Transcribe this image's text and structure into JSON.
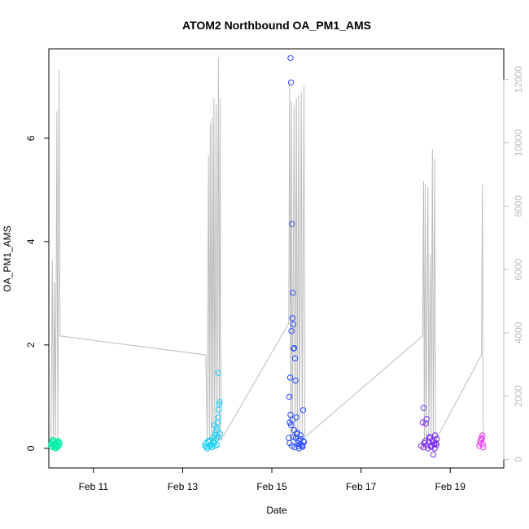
{
  "chart_data": {
    "type": "scatter",
    "title": "ATOM2 Northbound OA_PM1_AMS",
    "xlabel": "Date",
    "ylabel": "OA_PM1_AMS",
    "xlim": [
      10.0,
      20.2
    ],
    "ylim": [
      -0.38,
      7.73
    ],
    "y2lim": [
      -270,
      12970
    ],
    "x_ticks": [
      {
        "value": 11,
        "label": "Feb 11"
      },
      {
        "value": 13,
        "label": "Feb 13"
      },
      {
        "value": 15,
        "label": "Feb 15"
      },
      {
        "value": 17,
        "label": "Feb 17"
      },
      {
        "value": 19,
        "label": "Feb 19"
      }
    ],
    "y_ticks": [
      0,
      2,
      4,
      6
    ],
    "y2_ticks": [
      0,
      2000,
      4000,
      6000,
      8000,
      10000,
      12000
    ],
    "secondary_series_color": "#bdbdbd",
    "series": [
      {
        "color": "#00f0a8",
        "points": [
          [
            10.05,
            0.05
          ],
          [
            10.07,
            0.12
          ],
          [
            10.09,
            0.02
          ],
          [
            10.1,
            0.08
          ],
          [
            10.12,
            0.15
          ],
          [
            10.13,
            0.04
          ],
          [
            10.15,
            0.1
          ],
          [
            10.16,
            0.0
          ],
          [
            10.18,
            0.07
          ],
          [
            10.19,
            0.13
          ],
          [
            10.2,
            0.03
          ],
          [
            10.22,
            0.09
          ],
          [
            10.23,
            0.06
          ],
          [
            10.24,
            0.11
          ],
          [
            10.08,
            0.16
          ],
          [
            10.14,
            0.01
          ],
          [
            10.17,
            0.05
          ],
          [
            10.21,
            0.14
          ],
          [
            10.11,
            0.06
          ],
          [
            10.06,
            0.09
          ]
        ]
      },
      {
        "color": "#1ad0f5",
        "points": [
          [
            13.5,
            0.05
          ],
          [
            13.52,
            0.1
          ],
          [
            13.55,
            0.0
          ],
          [
            13.58,
            0.12
          ],
          [
            13.6,
            0.04
          ],
          [
            13.62,
            0.15
          ],
          [
            13.65,
            0.08
          ],
          [
            13.68,
            0.2
          ],
          [
            13.7,
            0.1
          ],
          [
            13.72,
            0.25
          ],
          [
            13.74,
            0.3
          ],
          [
            13.75,
            0.18
          ],
          [
            13.76,
            0.4
          ],
          [
            13.77,
            0.35
          ],
          [
            13.78,
            0.5
          ],
          [
            13.8,
            0.6
          ],
          [
            13.81,
            0.75
          ],
          [
            13.82,
            0.85
          ],
          [
            13.83,
            0.9
          ],
          [
            13.8,
            1.46
          ],
          [
            13.79,
            0.22
          ],
          [
            13.73,
            0.05
          ],
          [
            13.66,
            0.02
          ],
          [
            13.63,
            0.06
          ],
          [
            13.57,
            0.14
          ],
          [
            13.53,
            0.03
          ],
          [
            13.84,
            0.28
          ],
          [
            13.71,
            0.45
          ],
          [
            13.69,
            0.12
          ],
          [
            13.77,
            0.07
          ]
        ]
      },
      {
        "color": "#2a4cff",
        "points": [
          [
            15.38,
            0.2
          ],
          [
            15.4,
            0.5
          ],
          [
            15.42,
            7.55
          ],
          [
            15.43,
            7.08
          ],
          [
            15.45,
            4.34
          ],
          [
            15.46,
            2.52
          ],
          [
            15.47,
            3.01
          ],
          [
            15.48,
            2.4
          ],
          [
            15.49,
            1.93
          ],
          [
            15.5,
            1.94
          ],
          [
            15.52,
            1.74
          ],
          [
            15.53,
            1.31
          ],
          [
            15.41,
            1.37
          ],
          [
            15.39,
            1.0
          ],
          [
            15.44,
            2.27
          ],
          [
            15.55,
            0.6
          ],
          [
            15.57,
            0.3
          ],
          [
            15.6,
            0.15
          ],
          [
            15.62,
            0.08
          ],
          [
            15.65,
            0.25
          ],
          [
            15.68,
            0.05
          ],
          [
            15.7,
            0.74
          ],
          [
            15.72,
            0.12
          ],
          [
            15.42,
            0.65
          ],
          [
            15.43,
            0.45
          ],
          [
            15.46,
            0.55
          ],
          [
            15.5,
            0.35
          ],
          [
            15.54,
            0.2
          ],
          [
            15.58,
            0.1
          ],
          [
            15.61,
            0.0
          ],
          [
            15.64,
            0.18
          ],
          [
            15.66,
            0.07
          ],
          [
            15.69,
            0.03
          ],
          [
            15.71,
            0.14
          ],
          [
            15.4,
            0.1
          ],
          [
            15.45,
            0.05
          ],
          [
            15.48,
            0.22
          ],
          [
            15.51,
            0.02
          ],
          [
            15.56,
            0.28
          ],
          [
            15.59,
            0.04
          ]
        ]
      },
      {
        "color": "#7a2cf0",
        "points": [
          [
            18.35,
            0.05
          ],
          [
            18.38,
            0.5
          ],
          [
            18.4,
            0.78
          ],
          [
            18.42,
            0.1
          ],
          [
            18.45,
            0.48
          ],
          [
            18.47,
            0.57
          ],
          [
            18.5,
            0.0
          ],
          [
            18.52,
            0.12
          ],
          [
            18.55,
            0.2
          ],
          [
            18.58,
            0.05
          ],
          [
            18.6,
            0.15
          ],
          [
            18.62,
            -0.12
          ],
          [
            18.64,
            0.08
          ],
          [
            18.66,
            0.25
          ],
          [
            18.68,
            0.1
          ],
          [
            18.7,
            0.18
          ],
          [
            18.4,
            0.02
          ],
          [
            18.44,
            0.14
          ],
          [
            18.48,
            0.06
          ],
          [
            18.53,
            0.22
          ],
          [
            18.57,
            0.03
          ],
          [
            18.61,
            0.11
          ],
          [
            18.65,
            0.0
          ],
          [
            18.69,
            0.07
          ]
        ]
      },
      {
        "color": "#e83cf0",
        "points": [
          [
            19.65,
            0.05
          ],
          [
            19.67,
            0.15
          ],
          [
            19.7,
            0.2
          ],
          [
            19.72,
            0.25
          ],
          [
            19.74,
            0.02
          ],
          [
            19.68,
            0.1
          ],
          [
            19.71,
            0.18
          ],
          [
            19.73,
            0.08
          ]
        ]
      }
    ],
    "secondary_line": [
      [
        10.05,
        600
      ],
      [
        10.08,
        6300
      ],
      [
        10.1,
        600
      ],
      [
        10.13,
        5600
      ],
      [
        10.15,
        600
      ],
      [
        10.18,
        11000
      ],
      [
        10.2,
        600
      ],
      [
        10.23,
        12300
      ],
      [
        10.25,
        3900
      ],
      [
        13.52,
        3300
      ],
      [
        13.55,
        600
      ],
      [
        13.58,
        9600
      ],
      [
        13.6,
        600
      ],
      [
        13.62,
        10600
      ],
      [
        13.64,
        600
      ],
      [
        13.66,
        10800
      ],
      [
        13.68,
        600
      ],
      [
        13.7,
        11400
      ],
      [
        13.72,
        600
      ],
      [
        13.75,
        11200
      ],
      [
        13.77,
        600
      ],
      [
        13.8,
        12700
      ],
      [
        13.82,
        600
      ],
      [
        13.84,
        11400
      ],
      [
        13.86,
        600
      ],
      [
        15.38,
        4300
      ],
      [
        15.4,
        11900
      ],
      [
        15.42,
        600
      ],
      [
        15.44,
        11300
      ],
      [
        15.46,
        600
      ],
      [
        15.5,
        11200
      ],
      [
        15.52,
        600
      ],
      [
        15.55,
        11400
      ],
      [
        15.57,
        600
      ],
      [
        15.6,
        11500
      ],
      [
        15.62,
        600
      ],
      [
        15.66,
        11600
      ],
      [
        15.68,
        600
      ],
      [
        15.72,
        11800
      ],
      [
        15.74,
        700
      ],
      [
        18.38,
        3900
      ],
      [
        18.4,
        8800
      ],
      [
        18.42,
        600
      ],
      [
        18.44,
        8700
      ],
      [
        18.46,
        600
      ],
      [
        18.5,
        8600
      ],
      [
        18.52,
        600
      ],
      [
        18.55,
        6500
      ],
      [
        18.57,
        600
      ],
      [
        18.6,
        9800
      ],
      [
        18.62,
        600
      ],
      [
        18.65,
        9500
      ],
      [
        18.67,
        600
      ],
      [
        19.7,
        3300
      ],
      [
        19.72,
        8700
      ],
      [
        19.74,
        600
      ]
    ]
  }
}
